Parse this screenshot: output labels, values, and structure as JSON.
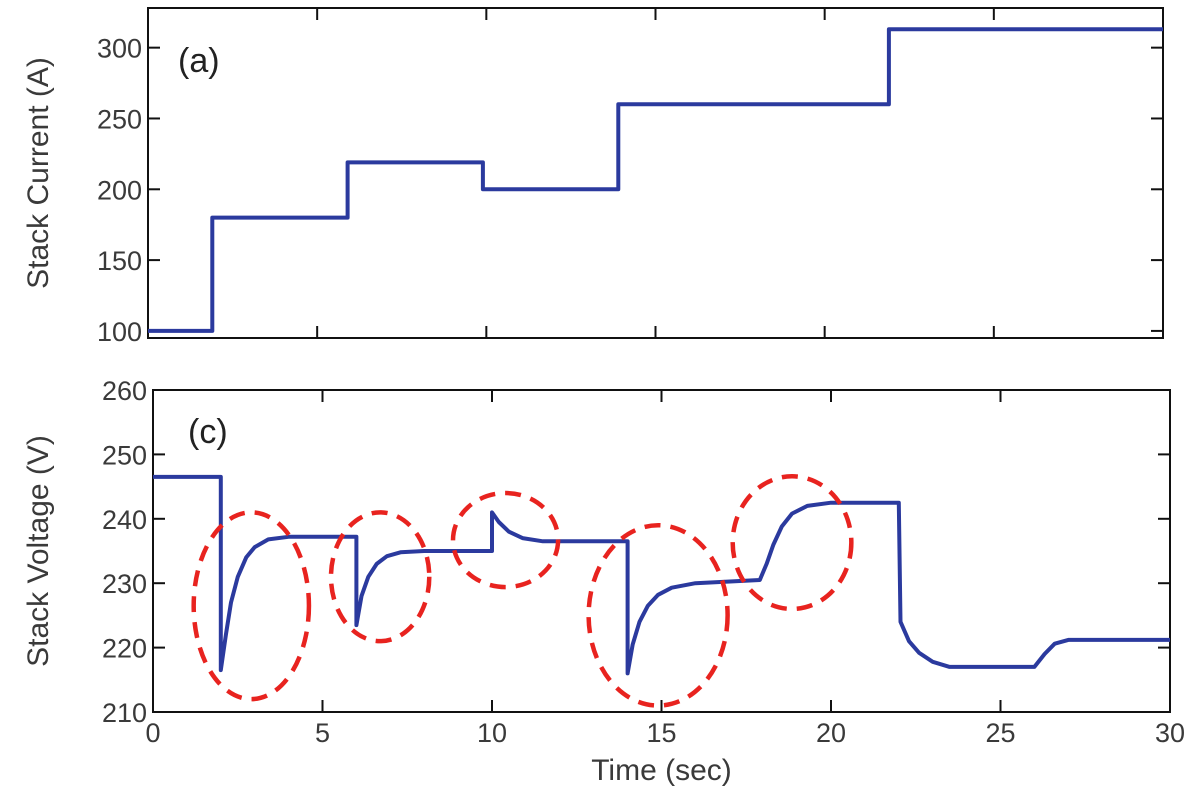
{
  "chart_data": [
    {
      "type": "line",
      "panel_label": "(a)",
      "ylabel": "Stack Current (A)",
      "xlim": [
        0,
        30
      ],
      "ylim": [
        95,
        328
      ],
      "x_ticks": [
        0,
        5,
        10,
        15,
        20,
        25,
        30
      ],
      "y_ticks": [
        100,
        150,
        200,
        250,
        300
      ],
      "grid": false,
      "series": [
        {
          "color": "#2b3a9e",
          "points": [
            [
              0,
              100
            ],
            [
              1.9,
              100
            ],
            [
              1.9,
              180
            ],
            [
              5.9,
              180
            ],
            [
              5.9,
              219
            ],
            [
              9.9,
              219
            ],
            [
              9.9,
              200
            ],
            [
              13.9,
              200
            ],
            [
              13.9,
              260
            ],
            [
              21.9,
              260
            ],
            [
              21.9,
              313
            ],
            [
              30,
              313
            ]
          ]
        }
      ]
    },
    {
      "type": "line",
      "panel_label": "(c)",
      "ylabel": "Stack Voltage (V)",
      "xlabel": "Time (sec)",
      "xlim": [
        0,
        30
      ],
      "ylim": [
        210,
        260
      ],
      "x_ticks": [
        0,
        5,
        10,
        15,
        20,
        25,
        30
      ],
      "y_ticks": [
        210,
        220,
        230,
        240,
        250,
        260
      ],
      "grid": false,
      "series": [
        {
          "color": "#2b3a9e",
          "points": [
            [
              0,
              246.5
            ],
            [
              2,
              246.5
            ],
            [
              2,
              216.5
            ],
            [
              2.15,
              222
            ],
            [
              2.3,
              227
            ],
            [
              2.5,
              231
            ],
            [
              2.75,
              234
            ],
            [
              3.0,
              235.6
            ],
            [
              3.4,
              236.8
            ],
            [
              4,
              237.2
            ],
            [
              6,
              237.2
            ],
            [
              6,
              223.5
            ],
            [
              6.15,
              228
            ],
            [
              6.35,
              231
            ],
            [
              6.6,
              233
            ],
            [
              6.9,
              234.2
            ],
            [
              7.3,
              234.8
            ],
            [
              8,
              235
            ],
            [
              10,
              235
            ],
            [
              10,
              241
            ],
            [
              10.2,
              239.5
            ],
            [
              10.5,
              238
            ],
            [
              10.9,
              237
            ],
            [
              11.5,
              236.5
            ],
            [
              14,
              236.5
            ],
            [
              14,
              216
            ],
            [
              14.15,
              220.5
            ],
            [
              14.35,
              224
            ],
            [
              14.6,
              226.5
            ],
            [
              14.9,
              228.2
            ],
            [
              15.3,
              229.3
            ],
            [
              16,
              230
            ],
            [
              17.9,
              230.5
            ],
            [
              18.1,
              233
            ],
            [
              18.3,
              236
            ],
            [
              18.55,
              238.8
            ],
            [
              18.85,
              240.8
            ],
            [
              19.3,
              242
            ],
            [
              20,
              242.5
            ],
            [
              22,
              242.5
            ],
            [
              22.05,
              224
            ],
            [
              22.3,
              221
            ],
            [
              22.6,
              219.2
            ],
            [
              23,
              217.8
            ],
            [
              23.5,
              217
            ],
            [
              26,
              217
            ],
            [
              26.3,
              219
            ],
            [
              26.6,
              220.6
            ],
            [
              27,
              221.2
            ],
            [
              30,
              221.2
            ]
          ]
        }
      ],
      "annotations": {
        "type": "ellipse",
        "color": "#e8231f",
        "style": "dashed",
        "items": [
          {
            "cx": 2.9,
            "cy": 226.5,
            "rx": 1.7,
            "ry": 14.5
          },
          {
            "cx": 6.7,
            "cy": 231,
            "rx": 1.45,
            "ry": 10
          },
          {
            "cx": 10.4,
            "cy": 236.7,
            "rx": 1.55,
            "ry": 7.3
          },
          {
            "cx": 14.9,
            "cy": 225,
            "rx": 2.05,
            "ry": 14
          },
          {
            "cx": 18.85,
            "cy": 236.3,
            "rx": 1.75,
            "ry": 10.3
          }
        ]
      }
    }
  ]
}
